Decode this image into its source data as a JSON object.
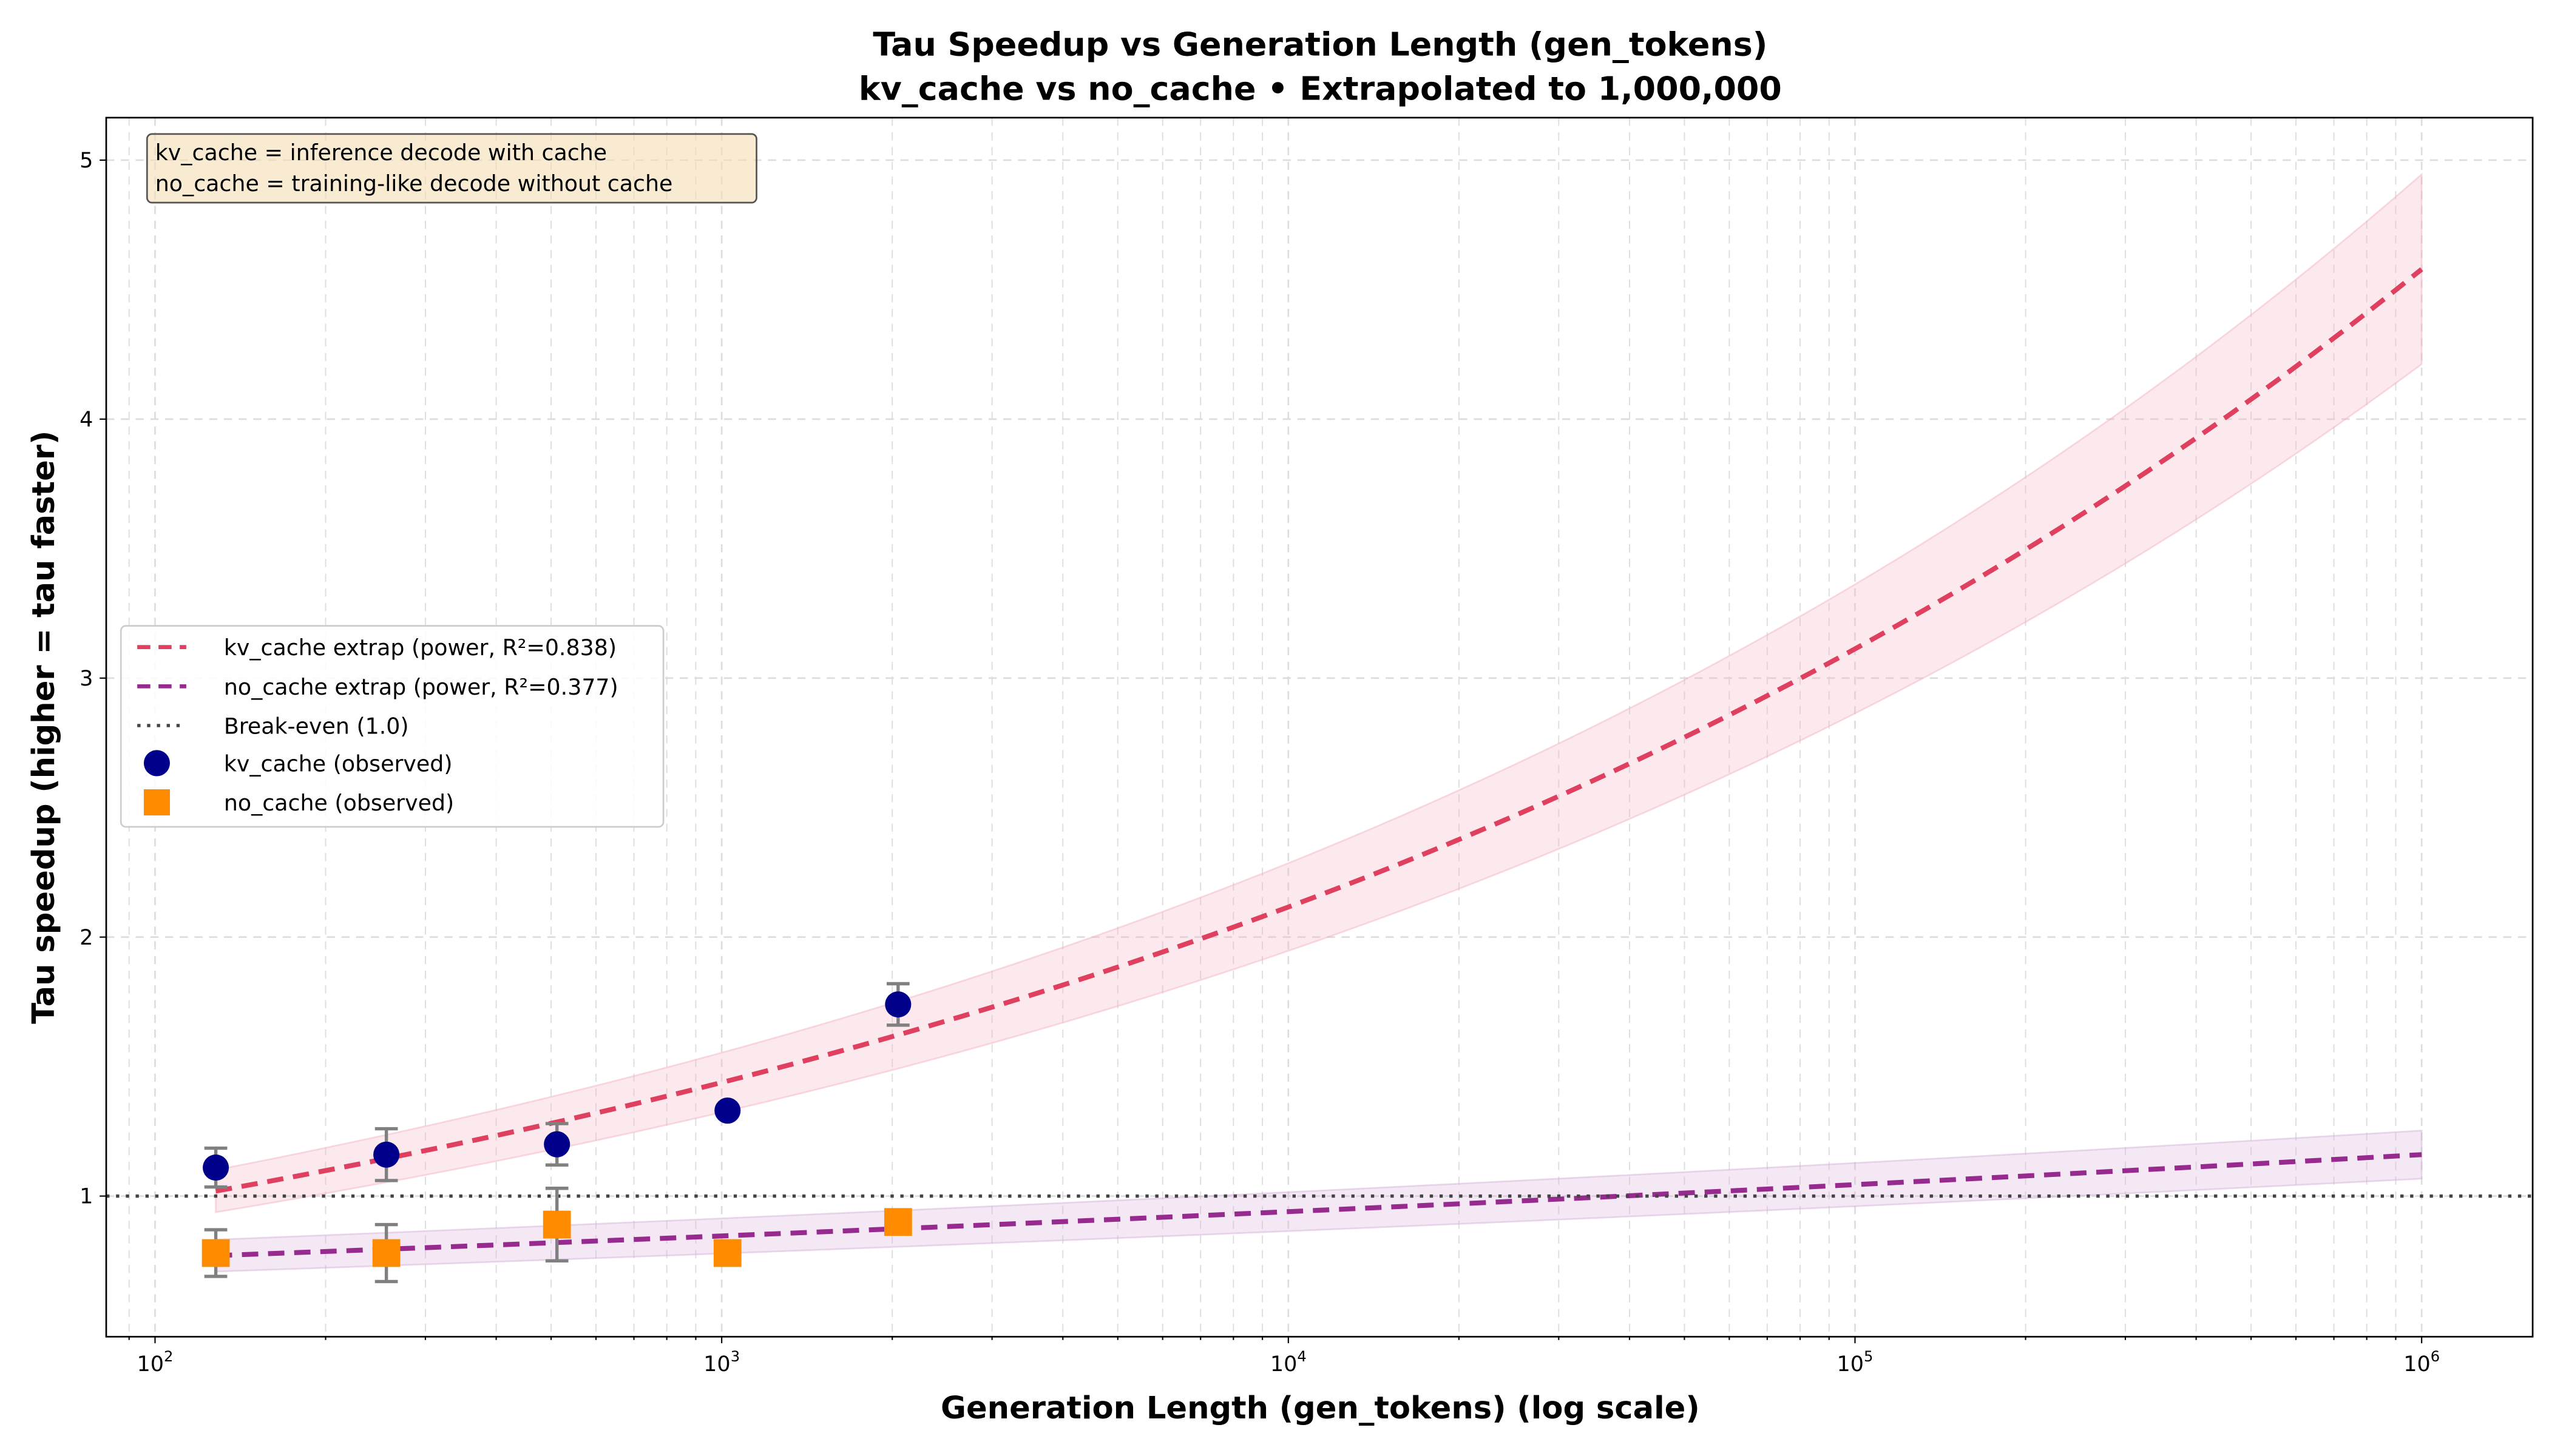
{
  "chart_data": {
    "type": "line",
    "title": [
      "Tau Speedup vs Generation Length (gen_tokens)",
      "kv_cache vs no_cache • Extrapolated to 1,000,000"
    ],
    "xlabel": "Generation Length (gen_tokens) (log scale)",
    "ylabel": "Tau speedup (higher = tau faster)",
    "xscale": "log",
    "xlim": [
      82,
      1570000
    ],
    "ylim": [
      0.457,
      5.164
    ],
    "grid": true,
    "xticks": [
      {
        "v": 100,
        "base": "10",
        "exp": "2"
      },
      {
        "v": 1000,
        "base": "10",
        "exp": "3"
      },
      {
        "v": 10000,
        "base": "10",
        "exp": "4"
      },
      {
        "v": 100000,
        "base": "10",
        "exp": "5"
      },
      {
        "v": 1000000,
        "base": "10",
        "exp": "6"
      }
    ],
    "yticks": [
      1,
      2,
      3,
      4,
      5
    ],
    "annotation": [
      "kv_cache = inference decode with cache",
      "no_cache = training-like decode without cache"
    ],
    "legend_position": "center-left",
    "legend": [
      "kv_cache extrap (power, R²=0.838)",
      "no_cache extrap (power, R²=0.377)",
      "Break-even (1.0)",
      "kv_cache (observed)",
      "no_cache (observed)"
    ],
    "break_even": 1.0,
    "fits": [
      {
        "name": "kv_cache extrap",
        "model": "power",
        "a": 0.452,
        "b": 0.1676,
        "r2": 0.838,
        "band": 0.08,
        "x_range": [
          128,
          1000000
        ],
        "color": "#e0405f",
        "band_color": "#f4b6c2"
      },
      {
        "name": "no_cache extrap",
        "model": "power",
        "a": 0.617,
        "b": 0.0457,
        "r2": 0.377,
        "band": 0.08,
        "x_range": [
          128,
          1000000
        ],
        "color": "#962a8f",
        "band_color": "#d6b3d9"
      }
    ],
    "series": [
      {
        "name": "kv_cache (observed)",
        "marker": "circle",
        "color": "#00008b",
        "x": [
          128,
          256,
          512,
          1024,
          2048
        ],
        "y": [
          1.11,
          1.16,
          1.2,
          1.33,
          1.74
        ],
        "err": [
          0.075,
          0.1,
          0.08,
          0,
          0.08
        ]
      },
      {
        "name": "no_cache (observed)",
        "marker": "square",
        "color": "#ff8c00",
        "x": [
          128,
          256,
          512,
          1024,
          2048
        ],
        "y": [
          0.78,
          0.78,
          0.89,
          0.78,
          0.9
        ],
        "err": [
          0.09,
          0.11,
          0.14,
          0,
          0
        ]
      }
    ]
  }
}
